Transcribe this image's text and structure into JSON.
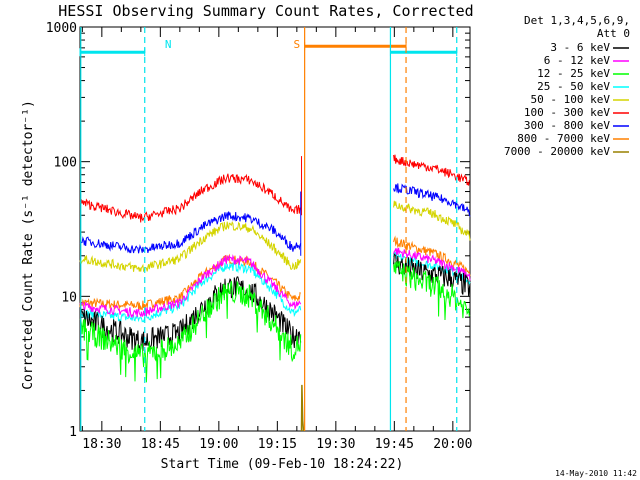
{
  "chart_data": {
    "type": "line",
    "title": "HESSI Observing Summary Count Rates, Corrected",
    "xlabel": "Start Time (09-Feb-10 18:24:22)",
    "ylabel": "Corrected Count Rate (s⁻¹ detector⁻¹)",
    "yscale": "log",
    "ylim": [
      1,
      1000
    ],
    "xlim_minutes": [
      24.4,
      124.4
    ],
    "x_ticks": [
      {
        "label": "18:30",
        "minute": 30
      },
      {
        "label": "18:45",
        "minute": 45
      },
      {
        "label": "19:00",
        "minute": 60
      },
      {
        "label": "19:15",
        "minute": 75
      },
      {
        "label": "19:30",
        "minute": 90
      },
      {
        "label": "19:45",
        "minute": 105
      },
      {
        "label": "20:00",
        "minute": 120
      }
    ],
    "y_ticks": [
      {
        "label": "1",
        "value": 1
      },
      {
        "label": "10",
        "value": 10
      },
      {
        "label": "100",
        "value": 100
      },
      {
        "label": "1000",
        "value": 1000
      }
    ],
    "legend_header": [
      "Det 1,3,4,5,6,9,",
      "Att 0"
    ],
    "legend_position": "right",
    "series": [
      {
        "name": "3 - 6 keV",
        "color": "#000000",
        "segments": [
          {
            "x": [
              24.4,
              40,
              50,
              56,
              62,
              68,
              74,
              79,
              81
            ],
            "y": [
              7,
              4.6,
              5.3,
              8.5,
              12,
              11,
              7.5,
              5,
              5.5
            ]
          },
          {
            "x": [
              104.8,
              110,
              115,
              120,
              124.4
            ],
            "y": [
              18,
              15.5,
              14.5,
              13.5,
              11.5
            ]
          }
        ]
      },
      {
        "name": "6 - 12 keV",
        "color": "#ff00ff",
        "segments": [
          {
            "x": [
              24.4,
              40,
              50,
              56,
              62,
              68,
              74,
              79,
              81
            ],
            "y": [
              8.5,
              7.5,
              9,
              14,
              19,
              18,
              12,
              8.5,
              9
            ]
          },
          {
            "x": [
              104.8,
              110,
              115,
              120,
              124.4
            ],
            "y": [
              22,
              20,
              18.5,
              16.5,
              14
            ]
          }
        ]
      },
      {
        "name": "12 - 25 keV",
        "color": "#00ff00",
        "segments": [
          {
            "x": [
              24.4,
              40,
              50,
              56,
              62,
              68,
              74,
              79,
              81
            ],
            "y": [
              5.8,
              3.6,
              4.4,
              7.5,
              11,
              10,
              6.3,
              4,
              4.5
            ]
          },
          {
            "x": [
              104.8,
              110,
              115,
              120,
              124.4
            ],
            "y": [
              16,
              13.5,
              12,
              10,
              7.5
            ]
          }
        ]
      },
      {
        "name": "25 - 50 keV",
        "color": "#00ffff",
        "segments": [
          {
            "x": [
              24.4,
              40,
              50,
              56,
              62,
              68,
              74,
              79,
              81
            ],
            "y": [
              7.5,
              6.8,
              8.5,
              13,
              17,
              16,
              11,
              7.5,
              8
            ]
          },
          {
            "x": [
              104.8,
              110,
              115,
              120,
              124.4
            ],
            "y": [
              20,
              18,
              17,
              15.5,
              13
            ]
          }
        ]
      },
      {
        "name": "50 - 100 keV",
        "color": "#d4d400",
        "segments": [
          {
            "x": [
              24.4,
              40,
              50,
              56,
              62,
              68,
              74,
              79,
              81
            ],
            "y": [
              19,
              16,
              19,
              27,
              34,
              32,
              23,
              16.5,
              18
            ]
          },
          {
            "x": [
              104.8,
              110,
              115,
              120,
              124.4
            ],
            "y": [
              48,
              44,
              41,
              35,
              28
            ]
          }
        ]
      },
      {
        "name": "100 - 300 keV",
        "color": "#ff0000",
        "segments": [
          {
            "x": [
              24.4,
              40,
              50,
              56,
              62,
              68,
              74,
              79,
              81
            ],
            "y": [
              50,
              38,
              45,
              62,
              76,
              73,
              57,
              42,
              45
            ]
          },
          {
            "x": [
              104.8,
              110,
              115,
              120,
              124.4
            ],
            "y": [
              105,
              96,
              90,
              80,
              70
            ]
          }
        ]
      },
      {
        "name": "300 - 800 keV",
        "color": "#0000ff",
        "segments": [
          {
            "x": [
              24.4,
              40,
              50,
              56,
              62,
              68,
              74,
              79,
              81
            ],
            "y": [
              26,
              22,
              25,
              33,
              40,
              38,
              31,
              23,
              25
            ]
          },
          {
            "x": [
              104.8,
              110,
              115,
              120,
              124.4
            ],
            "y": [
              65,
              60,
              55,
              50,
              42
            ]
          }
        ]
      },
      {
        "name": "800 - 7000 keV",
        "color": "#ff8000",
        "segments": [
          {
            "x": [
              24.4,
              40,
              50,
              56,
              62,
              68,
              74,
              79,
              81
            ],
            "y": [
              9,
              8.5,
              9.8,
              14.5,
              19,
              18,
              13,
              9.5,
              10
            ]
          },
          {
            "x": [
              104.8,
              110,
              115,
              120,
              124.4
            ],
            "y": [
              26,
              23,
              21,
              18,
              15
            ]
          }
        ]
      },
      {
        "name": "7000 - 20000 keV",
        "color": "#998000",
        "segments": [
          {
            "x": [
              81.2,
              81.3,
              81.5,
              81.7
            ],
            "y": [
              1,
              2.2,
              1.2,
              1
            ]
          }
        ]
      }
    ],
    "annotations": [
      {
        "text": "N",
        "color": "#00e5ee",
        "x": 47
      },
      {
        "text": "S",
        "color": "#ff8000",
        "x": 80
      }
    ],
    "markers": [
      {
        "kind": "night-bar",
        "color": "#00e5ee",
        "x_start": 24.4,
        "x_end": 41,
        "y": 650
      },
      {
        "kind": "night-bar",
        "color": "#00e5ee",
        "x_start": 104,
        "x_end": 121,
        "y": 650
      },
      {
        "kind": "saa-bar",
        "color": "#ff8000",
        "x_start": 82,
        "x_end": 108,
        "y": 720
      },
      {
        "kind": "solid-line",
        "color": "#00e5ee",
        "x": 24.6
      },
      {
        "kind": "dashed-line",
        "color": "#00e5ee",
        "x": 41
      },
      {
        "kind": "solid-line",
        "color": "#ff8000",
        "x": 82
      },
      {
        "kind": "solid-line",
        "color": "#00e5ee",
        "x": 104
      },
      {
        "kind": "dashed-line",
        "color": "#ff8000",
        "x": 108
      },
      {
        "kind": "dashed-line",
        "color": "#00e5ee",
        "x": 121
      }
    ]
  },
  "footer": {
    "timestamp": "14-May-2010 11:42"
  }
}
